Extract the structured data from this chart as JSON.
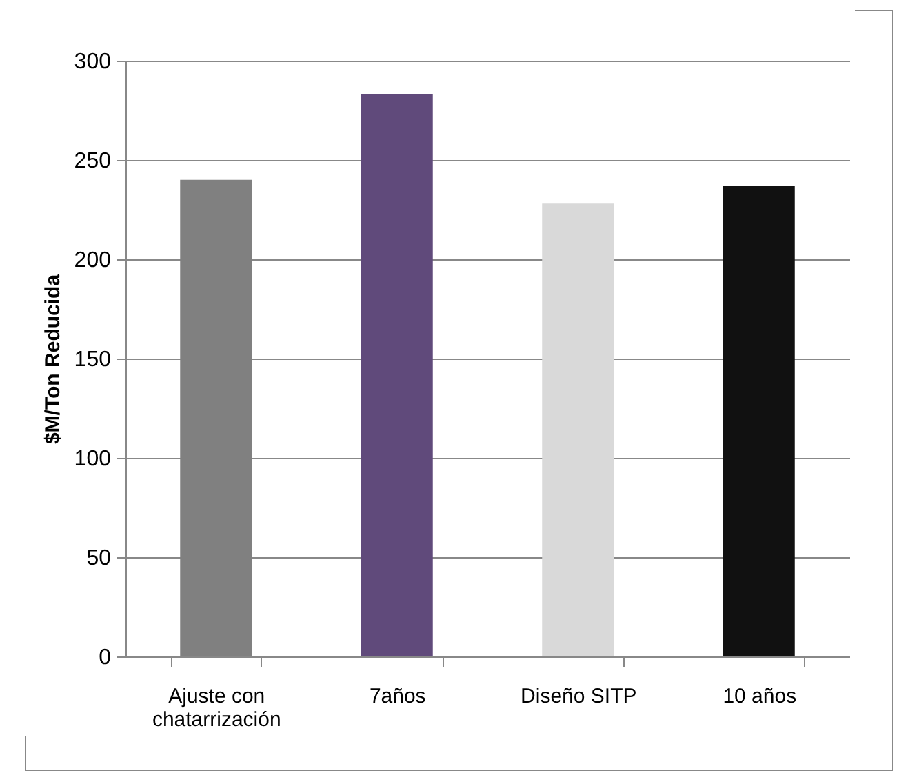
{
  "chart_data": {
    "type": "bar",
    "ylabel": "$M/Ton Reducida",
    "categories": [
      "Ajuste con chatarrización",
      "7años",
      "Diseño SITP",
      "10 años"
    ],
    "values": [
      240,
      283,
      228,
      237
    ],
    "colors": [
      "#808080",
      "#604a7b",
      "#d9d9d9",
      "#111111"
    ],
    "ylim": [
      0,
      300
    ],
    "yticks": [
      0,
      50,
      100,
      150,
      200,
      250,
      300
    ],
    "grid": "y"
  }
}
